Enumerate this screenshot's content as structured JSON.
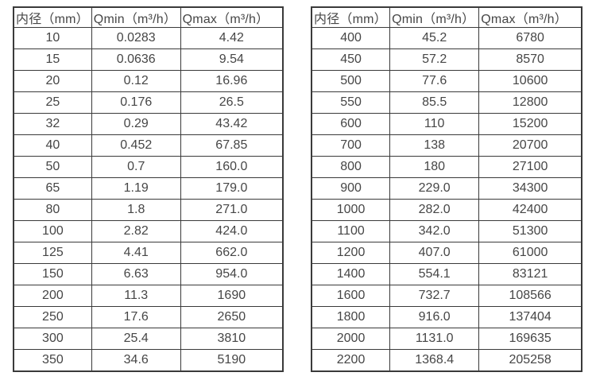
{
  "colors": {
    "background": "#ffffff",
    "border": "#3a3a3a",
    "text": "#464646"
  },
  "tables": [
    {
      "id": "flow-rate-table-small-diameters",
      "headers": [
        "内径（mm）",
        "Qmin（m³/h）",
        "Qmax（m³/h）"
      ],
      "rows": [
        [
          "10",
          "0.0283",
          "4.42"
        ],
        [
          "15",
          "0.0636",
          "9.54"
        ],
        [
          "20",
          "0.12",
          "16.96"
        ],
        [
          "25",
          "0.176",
          "26.5"
        ],
        [
          "32",
          "0.29",
          "43.42"
        ],
        [
          "40",
          "0.452",
          "67.85"
        ],
        [
          "50",
          "0.7",
          "160.0"
        ],
        [
          "65",
          "1.19",
          "179.0"
        ],
        [
          "80",
          "1.8",
          "271.0"
        ],
        [
          "100",
          "2.82",
          "424.0"
        ],
        [
          "125",
          "4.41",
          "662.0"
        ],
        [
          "150",
          "6.63",
          "954.0"
        ],
        [
          "200",
          "11.3",
          "1690"
        ],
        [
          "250",
          "17.6",
          "2650"
        ],
        [
          "300",
          "25.4",
          "3810"
        ],
        [
          "350",
          "34.6",
          "5190"
        ]
      ]
    },
    {
      "id": "flow-rate-table-large-diameters",
      "headers": [
        "内径（mm）",
        "Qmin（m³/h）",
        "Qmax（m³/h）"
      ],
      "rows": [
        [
          "400",
          "45.2",
          "6780"
        ],
        [
          "450",
          "57.2",
          "8570"
        ],
        [
          "500",
          "77.6",
          "10600"
        ],
        [
          "550",
          "85.5",
          "12800"
        ],
        [
          "600",
          "110",
          "15200"
        ],
        [
          "700",
          "138",
          "20700"
        ],
        [
          "800",
          "180",
          "27100"
        ],
        [
          "900",
          "229.0",
          "34300"
        ],
        [
          "1000",
          "282.0",
          "42400"
        ],
        [
          "1100",
          "342.0",
          "51300"
        ],
        [
          "1200",
          "407.0",
          "61000"
        ],
        [
          "1400",
          "554.1",
          "83121"
        ],
        [
          "1600",
          "732.7",
          "108566"
        ],
        [
          "1800",
          "916.0",
          "137404"
        ],
        [
          "2000",
          "1131.0",
          "169635"
        ],
        [
          "2200",
          "1368.4",
          "205258"
        ]
      ]
    }
  ]
}
